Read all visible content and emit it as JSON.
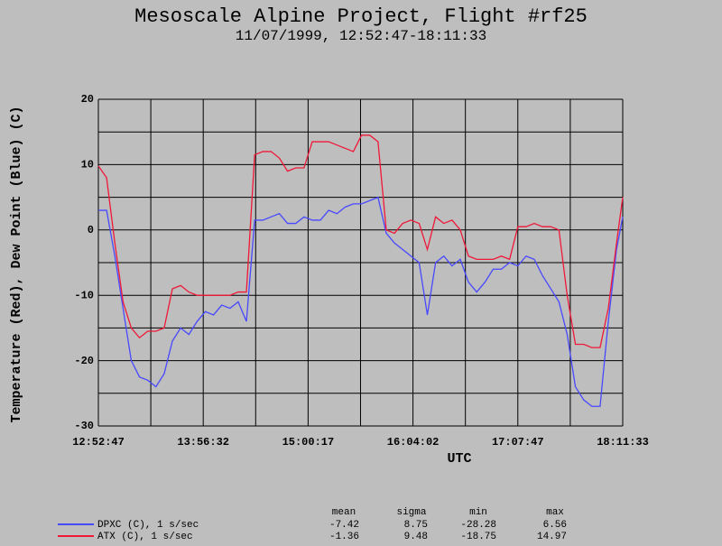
{
  "chart_data": {
    "type": "line",
    "title": "Mesoscale Alpine Project, Flight #rf25",
    "subtitle": "11/07/1999, 12:52:47-18:11:33",
    "x_label": "UTC",
    "y_label": "Temperature (Red), Dew Point (Blue) (C)",
    "x": [
      "12:52:47",
      "12:57:47",
      "13:02:47",
      "13:07:47",
      "13:12:47",
      "13:17:47",
      "13:22:47",
      "13:27:47",
      "13:32:47",
      "13:37:47",
      "13:42:47",
      "13:47:47",
      "13:52:47",
      "13:57:47",
      "14:02:47",
      "14:07:47",
      "14:12:47",
      "14:17:47",
      "14:22:47",
      "14:27:47",
      "14:32:47",
      "14:37:47",
      "14:42:47",
      "14:47:47",
      "14:52:47",
      "14:57:47",
      "15:02:47",
      "15:07:47",
      "15:12:47",
      "15:17:47",
      "15:22:47",
      "15:27:47",
      "15:32:47",
      "15:37:47",
      "15:42:47",
      "15:47:47",
      "15:52:47",
      "15:57:47",
      "16:02:47",
      "16:07:47",
      "16:12:47",
      "16:17:47",
      "16:22:47",
      "16:27:47",
      "16:32:47",
      "16:37:47",
      "16:42:47",
      "16:47:47",
      "16:52:47",
      "16:57:47",
      "17:02:47",
      "17:07:47",
      "17:12:47",
      "17:17:47",
      "17:22:47",
      "17:27:47",
      "17:32:47",
      "17:37:47",
      "17:42:47",
      "17:47:47",
      "17:52:47",
      "17:57:47",
      "18:02:47",
      "18:07:47",
      "18:11:33"
    ],
    "series": [
      {
        "name": "DPXC (C), 1 s/sec",
        "color": "#4848ff",
        "values": [
          3,
          3,
          -4,
          -12,
          -20,
          -22.5,
          -23,
          -24,
          -22,
          -17,
          -15,
          -16,
          -14,
          -12.5,
          -13,
          -11.5,
          -12,
          -11,
          -14,
          1.5,
          1.5,
          2,
          2.5,
          1,
          1,
          2,
          1.5,
          1.5,
          3,
          2.5,
          3.5,
          4,
          4,
          4.5,
          5,
          -0.5,
          -2,
          -3,
          -4,
          -5,
          -13,
          -5,
          -4,
          -5.5,
          -4.5,
          -8,
          -9.5,
          -8,
          -6,
          -6,
          -5,
          -5.5,
          -4,
          -4.5,
          -7,
          -9,
          -11,
          -16,
          -24,
          -26,
          -27,
          -27,
          -14,
          -3,
          2
        ]
      },
      {
        "name": "ATX (C), 1 s/sec",
        "color": "#f01838",
        "values": [
          9.8,
          8,
          -2,
          -11,
          -15,
          -16.5,
          -15.5,
          -15.5,
          -15,
          -9,
          -8.5,
          -9.5,
          -10,
          -10,
          -10,
          -10,
          -10,
          -9.5,
          -9.5,
          11.5,
          12,
          12,
          11,
          9,
          9.5,
          9.5,
          13.5,
          13.5,
          13.5,
          13,
          12.5,
          12,
          14.5,
          14.5,
          13.5,
          0,
          -0.5,
          1,
          1.5,
          1,
          -3,
          2,
          1,
          1.5,
          0,
          -4,
          -4.5,
          -4.5,
          -4.5,
          -4,
          -4.5,
          0.5,
          0.5,
          1,
          0.5,
          0.5,
          0,
          -10,
          -17.5,
          -17.5,
          -18,
          -18,
          -12,
          -2,
          5
        ]
      }
    ],
    "xlim": [
      "12:52:47",
      "18:11:33"
    ],
    "xticks": [
      "12:52:47",
      "13:56:32",
      "15:00:17",
      "16:04:02",
      "17:07:47",
      "18:11:33"
    ],
    "ylim": [
      -30,
      20
    ],
    "yticks": [
      20,
      10,
      0,
      -10,
      -20,
      -30
    ],
    "grid": true,
    "grid_subdivisions": 2,
    "stats": {
      "headers": [
        "mean",
        "sigma",
        "min",
        "max"
      ],
      "rows": [
        [
          -7.42,
          8.75,
          -28.28,
          6.56
        ],
        [
          -1.36,
          9.48,
          -18.75,
          14.97
        ]
      ]
    }
  }
}
